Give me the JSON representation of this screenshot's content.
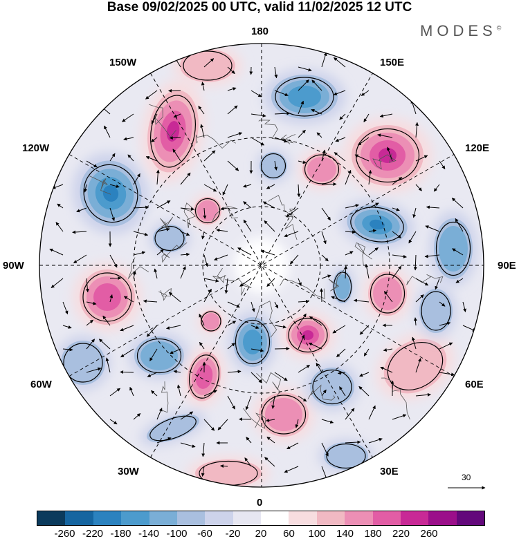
{
  "title": "Base 09/02/2025 00 UTC, valid 11/02/2025 12 UTC",
  "brand": "MODES",
  "brand_mark": "©",
  "longitude_labels": {
    "n180": "180",
    "n150e": "150E",
    "n120e": "120E",
    "n90e": "90E",
    "n60e": "60E",
    "n30e": "30E",
    "n0": "0",
    "n30w": "30W",
    "n60w": "60W",
    "n90w": "90W",
    "n120w": "120W",
    "n150w": "150W"
  },
  "reference_vector": {
    "value": "30"
  },
  "colorbar": {
    "colors": [
      "#0b3a5c",
      "#1565a0",
      "#2b82bf",
      "#4c9bcd",
      "#7aaed6",
      "#a9bfdf",
      "#cdd3eb",
      "#e7e7f2",
      "#ffffff",
      "#f7dde0",
      "#f1b9c3",
      "#ec8fb5",
      "#e25da5",
      "#c82996",
      "#9b0f8a",
      "#63087b"
    ],
    "ticks": [
      "-260",
      "-220",
      "-180",
      "-140",
      "-100",
      "-60",
      "-20",
      "20",
      "60",
      "100",
      "140",
      "180",
      "220",
      "260"
    ]
  }
}
